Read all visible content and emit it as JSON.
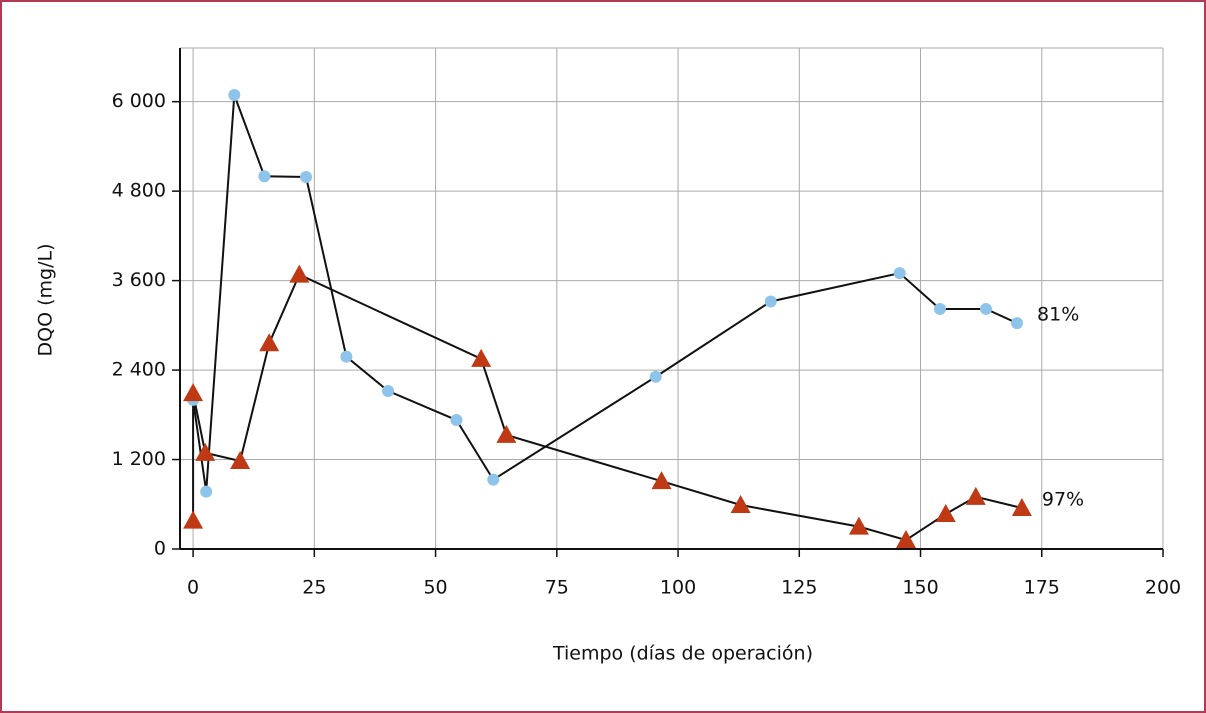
{
  "chart_data": {
    "type": "line",
    "xlabel": "Tiempo (días de operación)",
    "ylabel": "DQO (mg/L)",
    "xlim": [
      -2.7,
      200
    ],
    "ylim": [
      0,
      6720
    ],
    "xticks": [
      0,
      25,
      50,
      75,
      100,
      125,
      150,
      175,
      200
    ],
    "yticks": [
      0,
      {
        "value": 1200,
        "label": "1 200"
      },
      {
        "value": 2400,
        "label": "2 400"
      },
      {
        "value": 3600,
        "label": "3 600"
      },
      {
        "value": 4800,
        "label": "4 800"
      },
      {
        "value": 6000,
        "label": "6 000"
      }
    ],
    "grid": true,
    "series": [
      {
        "color": "#8fc4ea",
        "marker": "circle",
        "x": [
          0,
          2.7,
          8.5,
          14.7,
          23.3,
          31.6,
          40.2,
          54.3,
          61.9,
          95.4,
          119.1,
          145.7,
          154,
          163.5,
          169.9
        ],
        "values": [
          2000,
          770,
          6090,
          5000,
          4990,
          2580,
          2120,
          1730,
          930,
          2310,
          3320,
          3700,
          3220,
          3220,
          3030
        ],
        "annotation": "81%"
      },
      {
        "color": "#bf3a14",
        "marker": "triangle",
        "x": [
          0,
          0,
          2.5,
          9.7,
          15.7,
          21.9,
          59.4,
          64.6,
          96.6,
          112.9,
          137.3,
          147,
          155.2,
          161.4,
          170.9
        ],
        "values": [
          380,
          2090,
          1290,
          1180,
          2760,
          3680,
          2550,
          1530,
          910,
          590,
          300,
          120,
          470,
          700,
          550
        ],
        "annotation": "97%"
      }
    ]
  }
}
